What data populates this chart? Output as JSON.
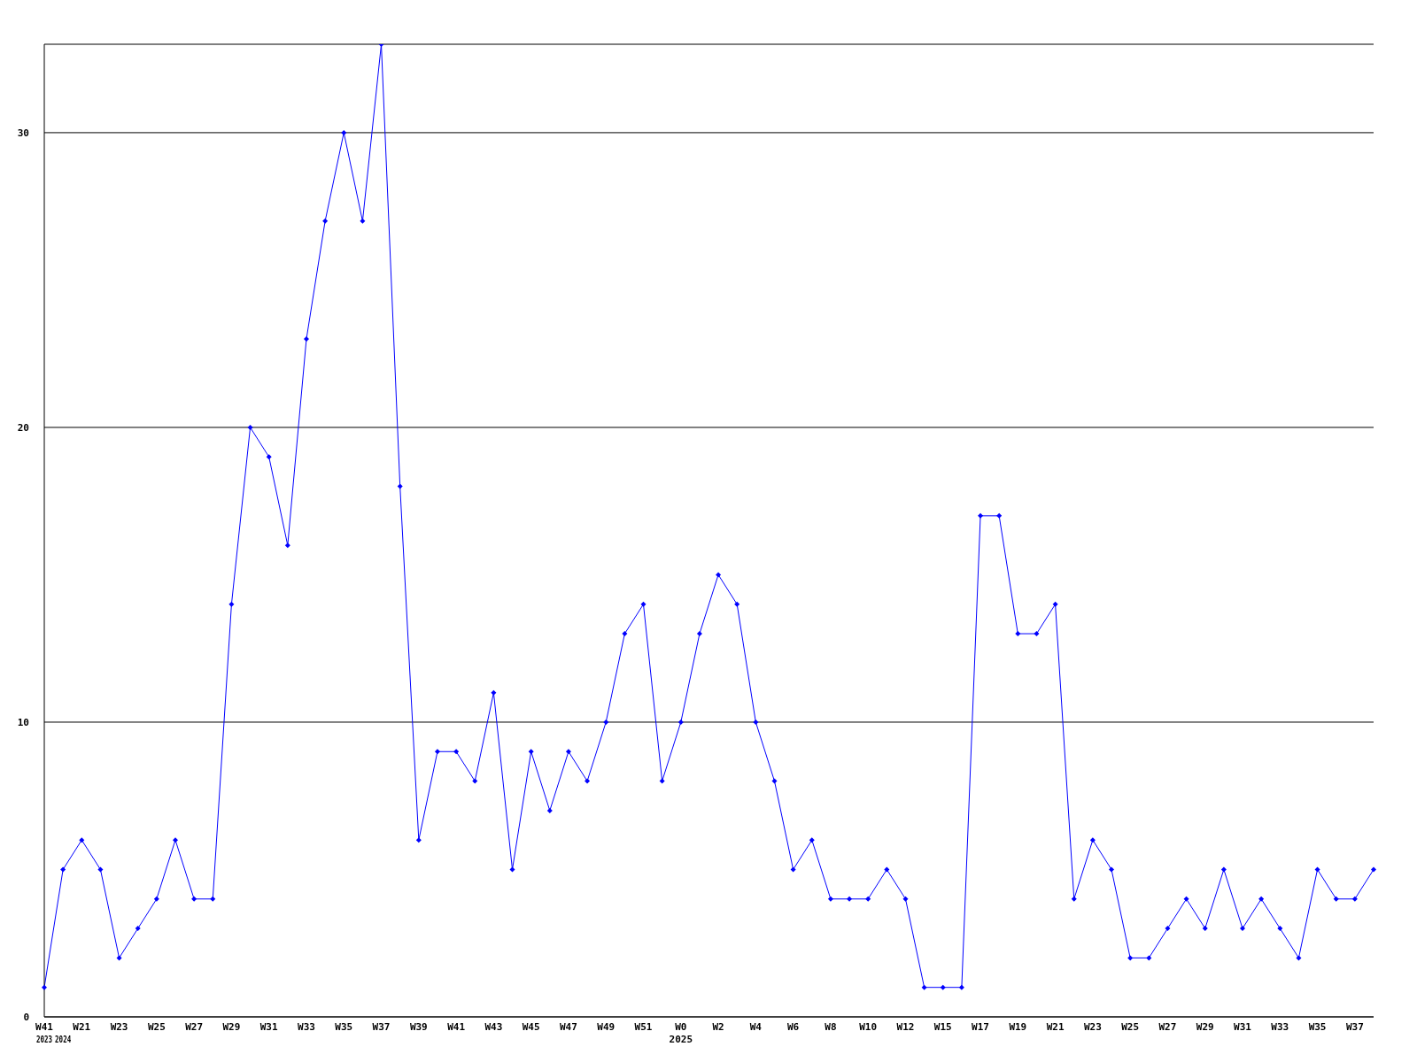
{
  "chart_data": {
    "type": "line",
    "categories": [
      "W41\n2023",
      "\n2024",
      "W21",
      null,
      "W23",
      null,
      "W25",
      null,
      "W27",
      null,
      "W29",
      null,
      "W31",
      null,
      "W33",
      null,
      "W35",
      null,
      "W37",
      null,
      "W39",
      null,
      "W41",
      null,
      "W43",
      null,
      "W45",
      null,
      "W47",
      null,
      "W49",
      null,
      "W51",
      null,
      "W0\n2025",
      null,
      "W2",
      null,
      "W4",
      null,
      "W6",
      null,
      "W8",
      null,
      "W10",
      null,
      "W12",
      null,
      "W15",
      null,
      "W17",
      null,
      "W19",
      null,
      "W21",
      null,
      "W23",
      null,
      "W25",
      null,
      "W27",
      null,
      "W29",
      null,
      "W31",
      null,
      "W33",
      null,
      "W35",
      null,
      "W37",
      null
    ],
    "series": [
      {
        "color": "#0000ff",
        "values": [
          1,
          5,
          6,
          5,
          2,
          3,
          4,
          6,
          4,
          4,
          14,
          20,
          19,
          16,
          23,
          27,
          30,
          27,
          33,
          18,
          6,
          9,
          9,
          8,
          11,
          5,
          9,
          7,
          9,
          8,
          10,
          13,
          14,
          8,
          10,
          13,
          15,
          14,
          10,
          8,
          5,
          6,
          4,
          4,
          4,
          5,
          4,
          1,
          1,
          1,
          17,
          17,
          13,
          13,
          14,
          4,
          6,
          5,
          2,
          2,
          3,
          4,
          3,
          5,
          3,
          4,
          3,
          2,
          5,
          4,
          4,
          5
        ]
      }
    ],
    "ylim": [
      0,
      33
    ],
    "yticks": [
      0,
      10,
      20,
      30
    ],
    "grid": "y",
    "marker": "diamond",
    "line_style": "solid"
  }
}
